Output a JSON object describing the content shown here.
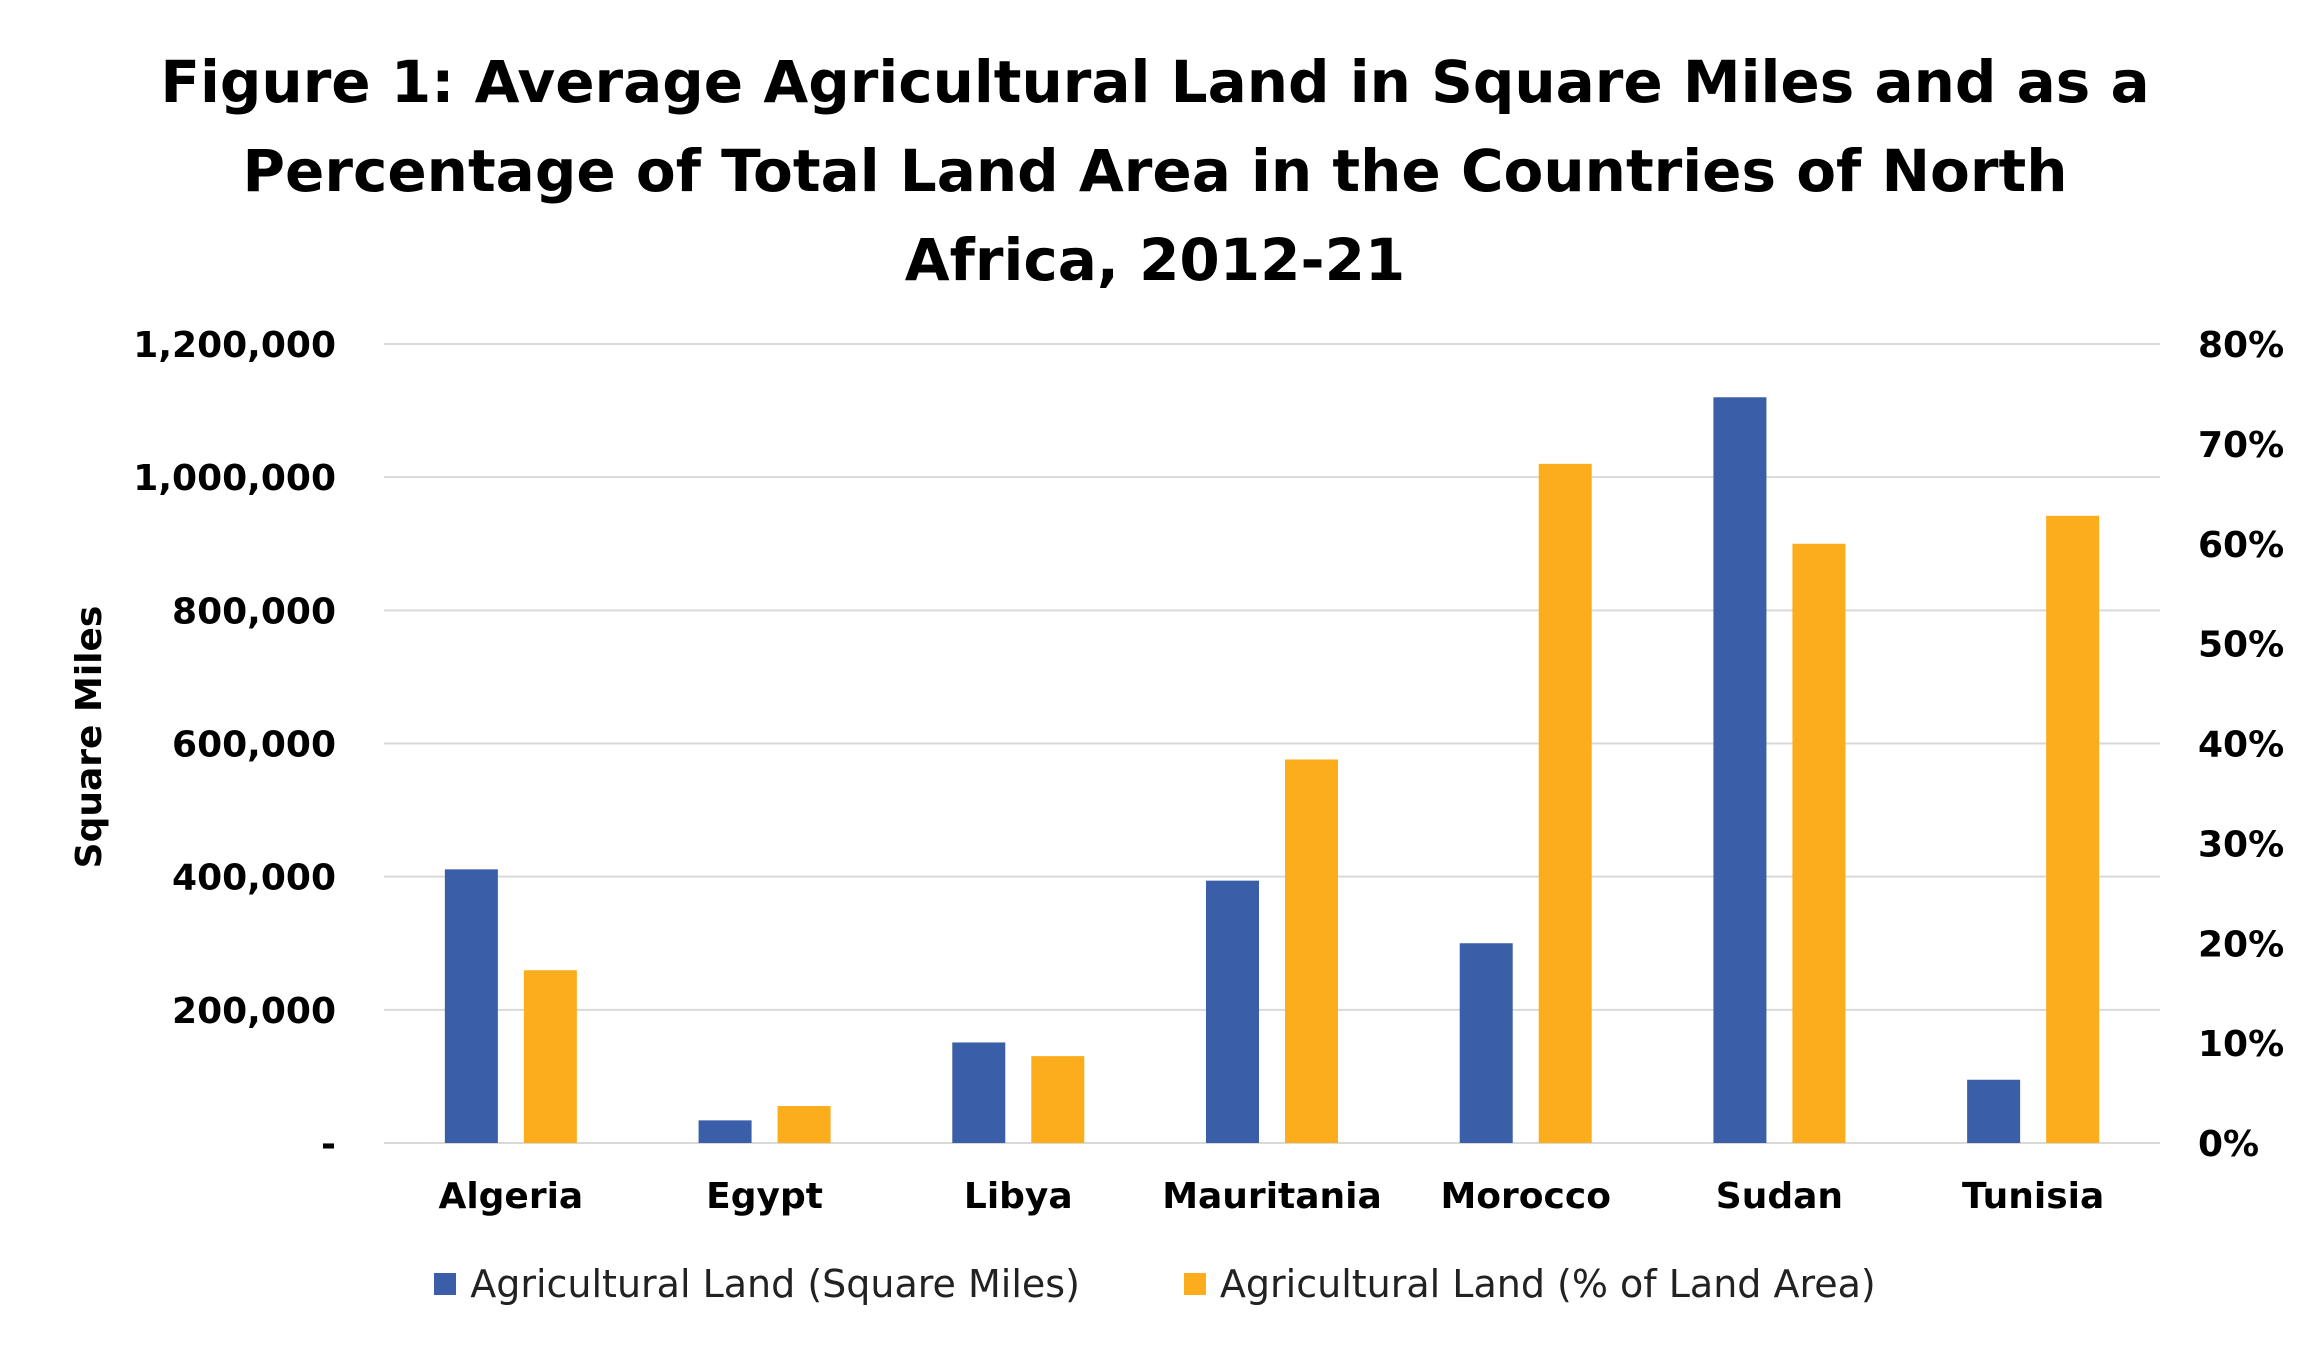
{
  "chart_data": {
    "type": "bar",
    "title_lines": [
      "Figure 1: Average Agricultural Land in Square Miles and as a",
      "Percentage of Total Land Area in the Countries of North",
      "Africa, 2012-21"
    ],
    "categories": [
      "Algeria",
      "Egypt",
      "Libya",
      "Mauritania",
      "Morocco",
      "Sudan",
      "Tunisia"
    ],
    "series": [
      {
        "name": "Agricultural Land (Square Miles)",
        "axis": "left",
        "color": "#3a5ea8",
        "values": [
          411000,
          34000,
          151000,
          394000,
          300000,
          1120000,
          95000
        ]
      },
      {
        "name": "Agricultural Land (% of Land Area)",
        "axis": "right",
        "color": "#fbad1b",
        "values": [
          17.3,
          3.7,
          8.7,
          38.4,
          68.0,
          60.0,
          62.8
        ]
      }
    ],
    "ylabel": "Square Miles",
    "y_left": {
      "lim": [
        0,
        1200000
      ],
      "ticks": [
        0,
        200000,
        400000,
        600000,
        800000,
        1000000,
        1200000
      ],
      "tick_labels": [
        "-",
        "200,000",
        "400,000",
        "600,000",
        "800,000",
        "1,000,000",
        "1,200,000"
      ]
    },
    "y_right": {
      "lim": [
        0,
        80
      ],
      "ticks": [
        0,
        10,
        20,
        30,
        40,
        50,
        60,
        70,
        80
      ],
      "tick_labels": [
        "0%",
        "10%",
        "20%",
        "30%",
        "40%",
        "50%",
        "60%",
        "70%",
        "80%"
      ]
    },
    "grid": true,
    "gridline_color": "#d9d9d9",
    "legend_position": "bottom"
  }
}
